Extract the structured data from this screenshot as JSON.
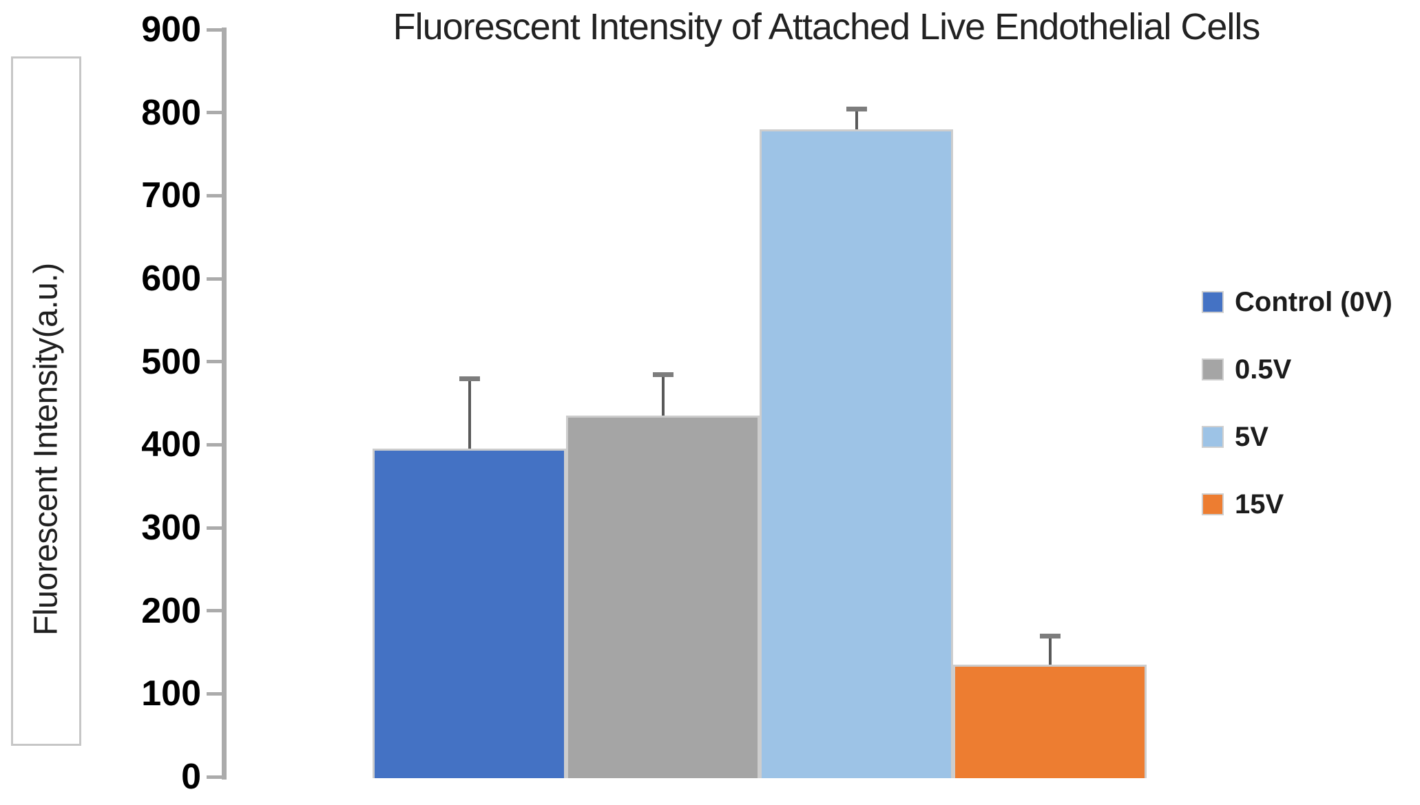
{
  "chart_data": {
    "type": "bar",
    "title": "Fluorescent Intensity of Attached Live Endothelial Cells",
    "ylabel": "Fluorescent Intensity(a.u.)",
    "xlabel": "",
    "categories": [
      "Control (0V)",
      "0.5V",
      "5V",
      "15V"
    ],
    "values": [
      395,
      435,
      780,
      135
    ],
    "error_upper": [
      85,
      50,
      25,
      35
    ],
    "colors": [
      "#4472C4",
      "#A5A5A5",
      "#9DC3E6",
      "#ED7D31"
    ],
    "ylim": [
      0,
      900
    ],
    "yticks": [
      900,
      800,
      700,
      600,
      500,
      400,
      300,
      200,
      100,
      0
    ],
    "grid": false,
    "legend_position": "right"
  },
  "legend": {
    "items": [
      {
        "label": "Control (0V)",
        "color": "#4472C4"
      },
      {
        "label": "0.5V",
        "color": "#A5A5A5"
      },
      {
        "label": "5V",
        "color": "#9DC3E6"
      },
      {
        "label": "15V",
        "color": "#ED7D31"
      }
    ]
  },
  "style": {
    "axis_color": "#ababab",
    "bar_border_color": "#cdcdcd",
    "error_bar_color": "#595959",
    "error_cap_color": "#7d7d7d",
    "text_color": "#1f1f1f"
  }
}
